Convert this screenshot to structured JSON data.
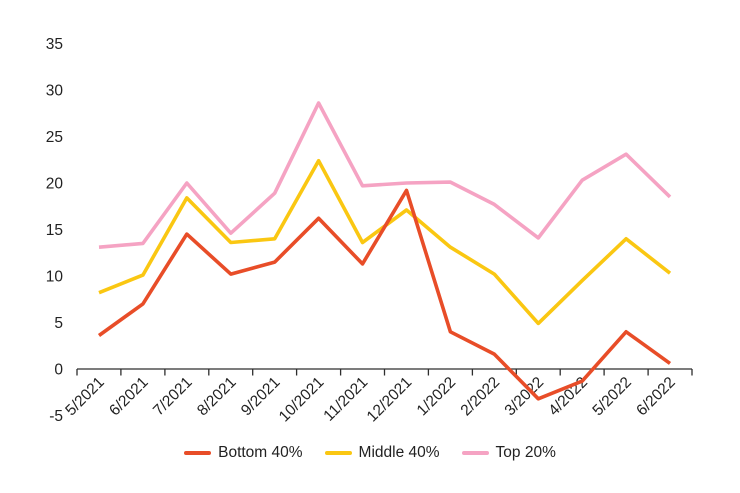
{
  "chart_data": {
    "type": "line",
    "title": "",
    "xlabel": "",
    "ylabel": "",
    "categories": [
      "5/2021",
      "6/2021",
      "7/2021",
      "8/2021",
      "9/2021",
      "10/2021",
      "11/2021",
      "12/2021",
      "1/2022",
      "2/2022",
      "3/2022",
      "4/2022",
      "5/2022",
      "6/2022"
    ],
    "series": [
      {
        "name": "Bottom 40%",
        "color": "#E84D28",
        "values": [
          3.6,
          7.0,
          14.5,
          10.2,
          11.5,
          16.2,
          11.3,
          19.2,
          4.0,
          1.6,
          -3.2,
          -1.3,
          4.0,
          0.6
        ]
      },
      {
        "name": "Middle 40%",
        "color": "#FAC712",
        "values": [
          8.2,
          10.1,
          18.4,
          13.6,
          14.0,
          22.4,
          13.6,
          17.1,
          13.1,
          10.2,
          4.9,
          9.5,
          14.0,
          10.3
        ]
      },
      {
        "name": "Top 20%",
        "color": "#F5A3C3",
        "values": [
          13.1,
          13.5,
          20.0,
          14.6,
          18.9,
          28.6,
          19.7,
          20.0,
          20.1,
          17.7,
          14.1,
          20.3,
          23.1,
          18.5
        ]
      }
    ],
    "ylim": [
      -5,
      35
    ],
    "yticks": [
      35,
      30,
      25,
      20,
      15,
      10,
      5,
      0,
      -5
    ],
    "grid": false,
    "legend_position": "bottom",
    "x_tick_rotation": -45
  },
  "colors": {
    "background": "#FFFFFF",
    "axis_line": "#2E2E2E",
    "label_text": "#222222"
  }
}
